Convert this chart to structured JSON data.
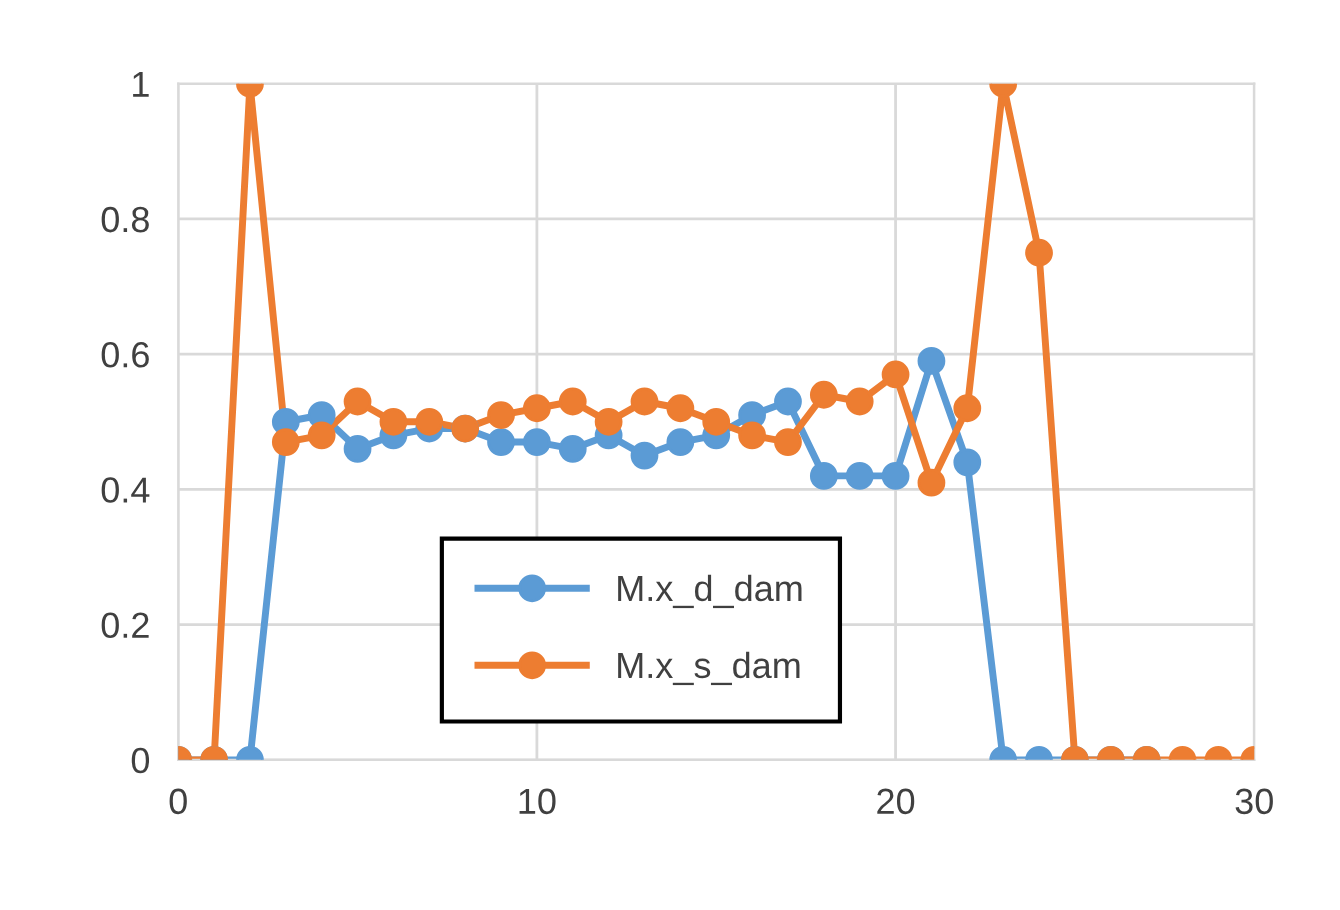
{
  "chart_data": {
    "type": "line",
    "x": [
      0,
      1,
      2,
      3,
      4,
      5,
      6,
      7,
      8,
      9,
      10,
      11,
      12,
      13,
      14,
      15,
      16,
      17,
      18,
      19,
      20,
      21,
      22,
      23,
      24,
      25,
      26,
      27,
      28,
      29,
      30
    ],
    "series": [
      {
        "name": "M.x_d_dam",
        "color": "#5b9bd5",
        "values": [
          0,
          0,
          0,
          0.5,
          0.51,
          0.46,
          0.48,
          0.49,
          0.49,
          0.47,
          0.47,
          0.46,
          0.48,
          0.45,
          0.47,
          0.48,
          0.51,
          0.53,
          0.42,
          0.42,
          0.42,
          0.59,
          0.44,
          0,
          0,
          0,
          0,
          0,
          null,
          null,
          null
        ]
      },
      {
        "name": "M.x_s_dam",
        "color": "#ed7d31",
        "values": [
          0,
          0,
          1,
          0.47,
          0.48,
          0.53,
          0.5,
          0.5,
          0.49,
          0.51,
          0.52,
          0.53,
          0.5,
          0.53,
          0.52,
          0.5,
          0.48,
          0.47,
          0.54,
          0.53,
          0.57,
          0.41,
          0.52,
          1,
          0.75,
          0,
          0,
          0,
          0,
          0,
          0
        ]
      }
    ],
    "xlim": [
      0,
      30
    ],
    "xticks": [
      0,
      10,
      20,
      30
    ],
    "ylim": [
      0,
      1
    ],
    "yticks": [
      0,
      0.2,
      0.4,
      0.6,
      0.8,
      1
    ],
    "grid": true,
    "legend": "bottom",
    "marker": "circle",
    "line_style": "solid"
  }
}
